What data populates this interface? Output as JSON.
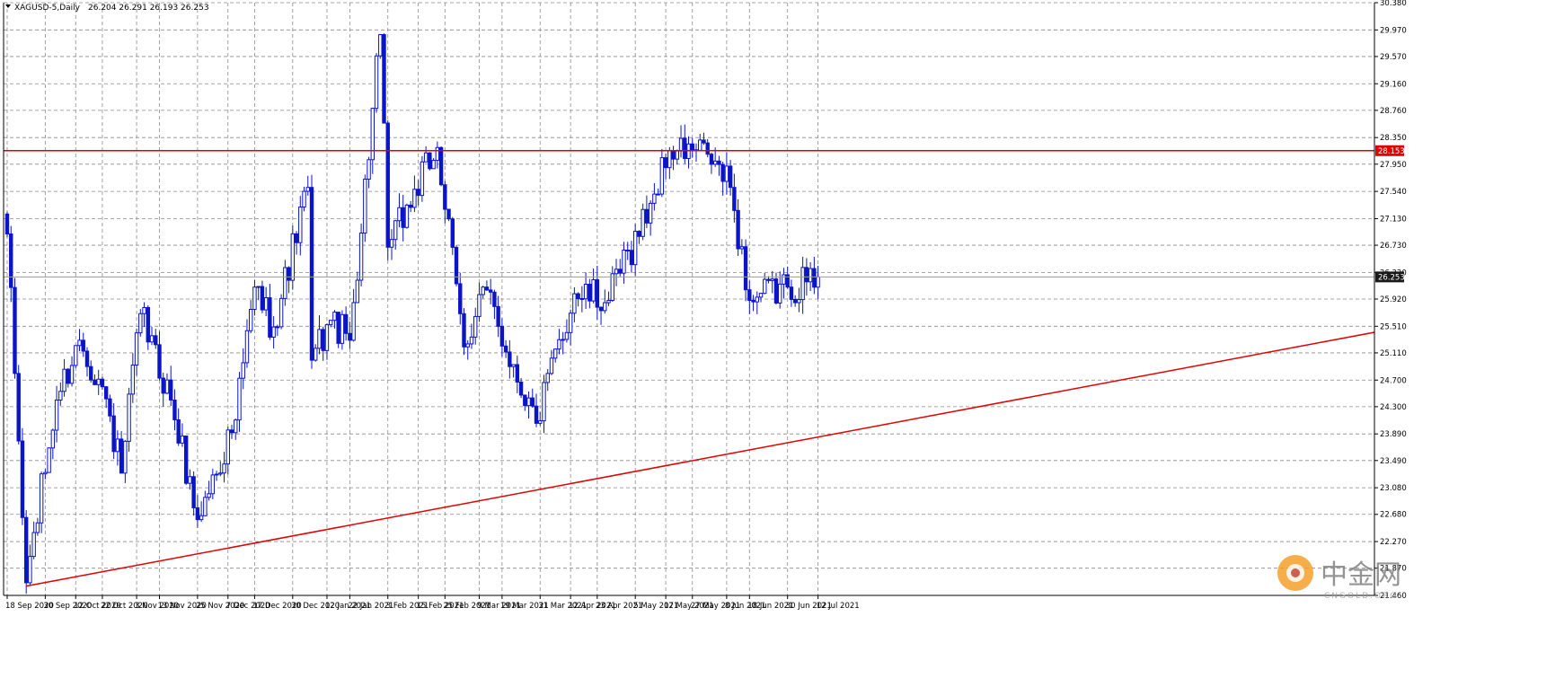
{
  "header": {
    "title": "XAGUSD-5,Daily",
    "ohlc": "26.204 26.291 26.193 26.253"
  },
  "watermark": {
    "name": "中金网",
    "site": "CNGOLD.ORG"
  },
  "colors": {
    "candle": "#0a14c8",
    "line": "#e00000",
    "grid": "#8a8a8a",
    "price_line": "#9a9a9a",
    "label_bg": "#e00000",
    "label_current_bg": "#1a1a1a"
  },
  "chart_data": {
    "type": "candlestick",
    "symbol": "XAGUSD-5",
    "timeframe": "Daily",
    "ylim": [
      21.46,
      30.38
    ],
    "y_ticks": [
      30.38,
      29.97,
      29.57,
      29.16,
      28.76,
      28.35,
      27.95,
      27.54,
      27.13,
      26.73,
      26.32,
      25.92,
      25.51,
      25.11,
      24.7,
      24.3,
      23.89,
      23.49,
      23.08,
      22.68,
      22.27,
      21.87,
      21.46
    ],
    "y_tick_labels": [
      "30.380",
      "29.970",
      "29.570",
      "29.160",
      "28.760",
      "28.350",
      "27.950",
      "27.540",
      "27.130",
      "26.730",
      "26.320",
      "25.920",
      "25.510",
      "25.110",
      "24.700",
      "24.300",
      "23.890",
      "23.490",
      "23.080",
      "22.680",
      "22.270",
      "21.870",
      "21.460"
    ],
    "x_tick_labels": [
      "18 Sep 2020",
      "30 Sep 2020",
      "12 Oct 2020",
      "22 Oct 2020",
      "3 Nov 2020",
      "13 Nov 2020",
      "25 Nov 2020",
      "7 Dec 2020",
      "17 Dec 2020",
      "30 Dec 2020",
      "12 Jan 2021",
      "22 Jan 2021",
      "3 Feb 2021",
      "15 Feb 2021",
      "25 Feb 2021",
      "9 Mar 2021",
      "19 Mar 2021",
      "31 Mar 2021",
      "12 Apr 2021",
      "23 Apr 2021",
      "5 May 2021",
      "17 May 2021",
      "27 May 2021",
      "8 Jun 2021",
      "18 Jun 2021",
      "30 Jun 2021",
      "12 Jul 2021"
    ],
    "key_points": [
      {
        "date": "18 Sep 2020",
        "value": 26.9
      },
      {
        "date": "24 Sep 2020",
        "value": 21.65
      },
      {
        "date": "5 Oct 2020",
        "value": 24.4
      },
      {
        "date": "13 Oct 2020",
        "value": 25.3
      },
      {
        "date": "22 Oct 2020",
        "value": 24.6
      },
      {
        "date": "28 Oct 2020",
        "value": 23.3
      },
      {
        "date": "6 Nov 2020",
        "value": 25.7
      },
      {
        "date": "16 Nov 2020",
        "value": 24.4
      },
      {
        "date": "27 Nov 2020",
        "value": 22.6
      },
      {
        "date": "11 Dec 2020",
        "value": 24.1
      },
      {
        "date": "16 Dec 2020",
        "value": 26.1
      },
      {
        "date": "23 Dec 2020",
        "value": 25.5
      },
      {
        "date": "5 Jan 2021",
        "value": 27.6
      },
      {
        "date": "8 Jan 2021",
        "value": 25.0
      },
      {
        "date": "14 Jan 2021",
        "value": 25.6
      },
      {
        "date": "21 Jan 2021",
        "value": 25.3
      },
      {
        "date": "1 Feb 2021",
        "value": 29.9
      },
      {
        "date": "4 Feb 2021",
        "value": 26.7
      },
      {
        "date": "22 Feb 2021",
        "value": 28.2
      },
      {
        "date": "4 Mar 2021",
        "value": 25.2
      },
      {
        "date": "12 Mar 2021",
        "value": 26.1
      },
      {
        "date": "30 Mar 2021",
        "value": 24.05
      },
      {
        "date": "13 Apr 2021",
        "value": 26.0
      },
      {
        "date": "26 Apr 2021",
        "value": 25.9
      },
      {
        "date": "12 May 2021",
        "value": 27.5
      },
      {
        "date": "18 May 2021",
        "value": 28.15
      },
      {
        "date": "1 Jun 2021",
        "value": 28.1
      },
      {
        "date": "10 Jun 2021",
        "value": 27.6
      },
      {
        "date": "17 Jun 2021",
        "value": 25.9
      },
      {
        "date": "30 Jun 2021",
        "value": 26.1
      },
      {
        "date": "12 Jul 2021",
        "value": 26.253
      }
    ],
    "horizontal_lines": [
      {
        "value": 28.153,
        "label": "28.153",
        "color": "#e00000"
      },
      {
        "value": 26.253,
        "label": "26.253",
        "color": "#9a9a9a"
      }
    ],
    "trendline": [
      {
        "date": "24 Sep 2020",
        "value": 21.6
      },
      {
        "date": "15 Jul 2021",
        "value": 25.42
      }
    ],
    "grid": true
  }
}
